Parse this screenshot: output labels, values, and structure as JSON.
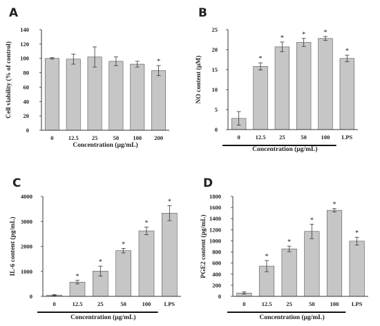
{
  "chart_data": [
    {
      "panel": "A",
      "type": "bar",
      "categories": [
        "0",
        "12.5",
        "25",
        "50",
        "100",
        "200"
      ],
      "values": [
        100,
        99,
        102,
        96,
        92,
        83
      ],
      "errors": [
        1,
        7,
        14,
        6,
        4,
        7
      ],
      "significant": [
        false,
        false,
        false,
        false,
        false,
        true
      ],
      "ylabel": "Cell viability (% of control)",
      "xlabel": "Concentration (μg/mL)",
      "yticks": [
        0,
        20,
        40,
        60,
        80,
        100,
        120,
        140
      ],
      "ylim": [
        0,
        140
      ],
      "bracket_count": 0,
      "bar_color": "#c6c6c6"
    },
    {
      "panel": "B",
      "type": "bar",
      "categories": [
        "0",
        "12.5",
        "25",
        "50",
        "100",
        "LPS"
      ],
      "values": [
        2.8,
        15.8,
        20.7,
        21.8,
        22.8,
        17.8
      ],
      "errors": [
        1.7,
        0.9,
        1.2,
        1.0,
        0.5,
        0.8
      ],
      "significant": [
        false,
        true,
        true,
        true,
        true,
        true
      ],
      "ylabel": "NO content (μM)",
      "xlabel": "Concentration (μg/mL)",
      "yticks": [
        0,
        5,
        10,
        15,
        20,
        25
      ],
      "ylim": [
        0,
        25
      ],
      "bracket_count": 5,
      "bar_color": "#c6c6c6"
    },
    {
      "panel": "C",
      "type": "bar",
      "categories": [
        "0",
        "12.5",
        "25",
        "50",
        "100",
        "LPS"
      ],
      "values": [
        50,
        570,
        1010,
        1830,
        2620,
        3330
      ],
      "errors": [
        20,
        70,
        200,
        90,
        150,
        300
      ],
      "significant": [
        false,
        true,
        true,
        true,
        true,
        true
      ],
      "ylabel": "IL-6 content (pg/mL)",
      "xlabel": "Concentration (μg/mL)",
      "yticks": [
        0,
        1000,
        2000,
        3000,
        4000
      ],
      "ylim": [
        0,
        4000
      ],
      "bracket_count": 5,
      "bar_color": "#c6c6c6"
    },
    {
      "panel": "D",
      "type": "bar",
      "categories": [
        "0",
        "12.5",
        "25",
        "50",
        "100",
        "LPS"
      ],
      "values": [
        60,
        545,
        855,
        1170,
        1550,
        995
      ],
      "errors": [
        20,
        100,
        50,
        130,
        30,
        70
      ],
      "significant": [
        false,
        true,
        true,
        true,
        true,
        true
      ],
      "ylabel": "PGE2 content (pg/mL)",
      "xlabel": "Concentration (μg/mL)",
      "yticks": [
        0,
        200,
        400,
        600,
        800,
        1000,
        1200,
        1400,
        1600,
        1800
      ],
      "ylim": [
        0,
        1800
      ],
      "bracket_count": 5,
      "bar_color": "#c6c6c6"
    }
  ]
}
